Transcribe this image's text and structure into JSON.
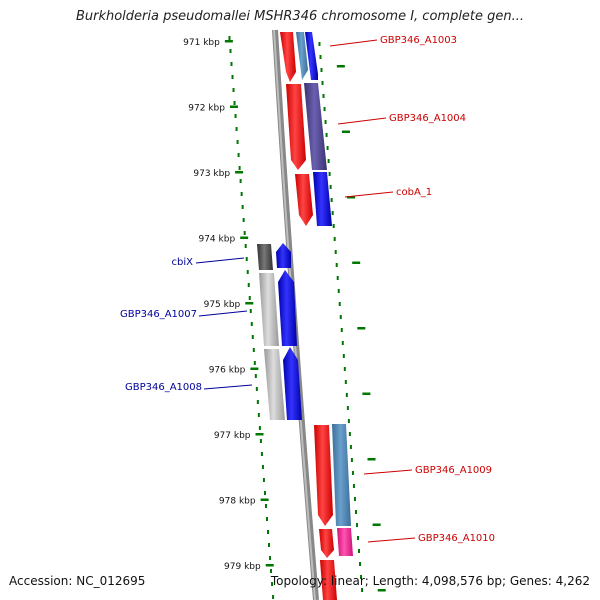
{
  "title": "Burkholderia pseudomallei MSHR346 chromosome I, complete gen...",
  "footer": {
    "accession": "Accession: NC_012695",
    "stats": "Topology: linear; Length: 4,098,576 bp; Genes: 4,262"
  },
  "ticks": [
    {
      "label": "971 kbp"
    },
    {
      "label": "972 kbp"
    },
    {
      "label": "973 kbp"
    },
    {
      "label": "974 kbp"
    },
    {
      "label": "975 kbp"
    },
    {
      "label": "976 kbp"
    },
    {
      "label": "977 kbp"
    },
    {
      "label": "978 kbp"
    },
    {
      "label": "979 kbp"
    }
  ],
  "genes": [
    {
      "label": "GBP346_A1003",
      "color": "#cc0000",
      "side": "right"
    },
    {
      "label": "GBP346_A1004",
      "color": "#cc0000",
      "side": "right"
    },
    {
      "label": "cobA_1",
      "color": "#cc0000",
      "side": "right"
    },
    {
      "label": "cbiX",
      "color": "#000099",
      "side": "left"
    },
    {
      "label": "GBP346_A1007",
      "color": "#000099",
      "side": "left"
    },
    {
      "label": "GBP346_A1008",
      "color": "#000099",
      "side": "left"
    },
    {
      "label": "GBP346_A1009",
      "color": "#cc0000",
      "side": "right"
    },
    {
      "label": "GBP346_A1010",
      "color": "#cc0000",
      "side": "right"
    }
  ],
  "colors": {
    "backbone": "#888888",
    "forward_strand": "#ff0000",
    "reverse_strand": "#0000ff",
    "cds_grey": "#bbbbbb",
    "cds_steelblue": "#4682b4",
    "cds_slate": "#483d8b",
    "cds_pink": "#ff1493",
    "tick_green": "#007700"
  }
}
